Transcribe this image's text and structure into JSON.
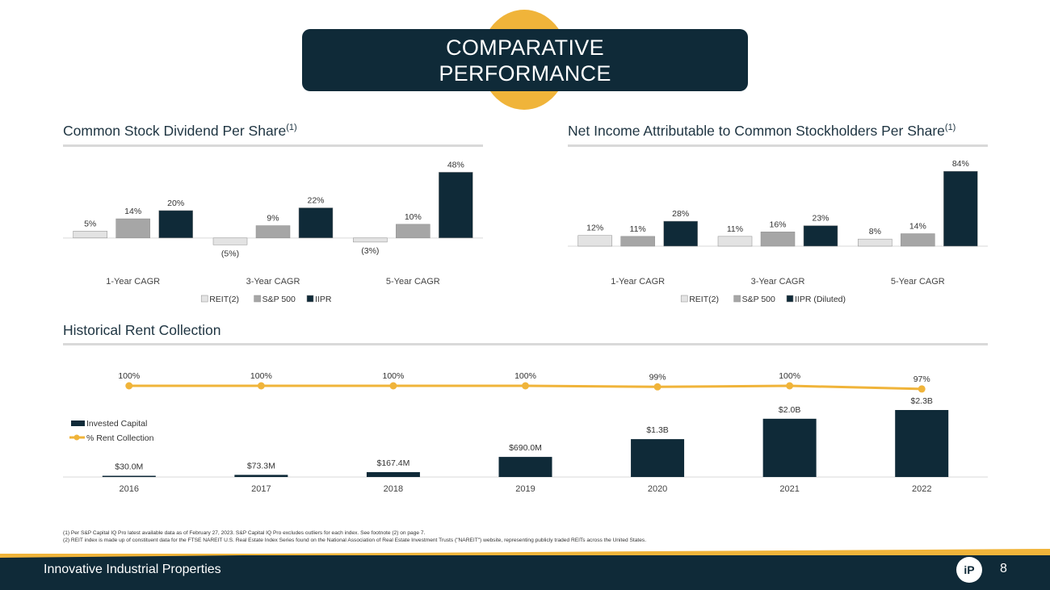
{
  "page_title": [
    "COMPARATIVE",
    "PERFORMANCE"
  ],
  "sections": {
    "dividend": {
      "title": "Common Stock Dividend Per Share",
      "sup": "(1)"
    },
    "net_income": {
      "title": "Net Income Attributable to Common Stockholders Per Share",
      "sup": "(1)"
    },
    "rent": {
      "title": "Historical Rent Collection"
    }
  },
  "chart_data": [
    {
      "type": "bar",
      "title": "Common Stock Dividend Per Share(1)",
      "categories": [
        "1-Year CAGR",
        "3-Year CAGR",
        "5-Year CAGR"
      ],
      "series": [
        {
          "name": "REIT(2)",
          "values": [
            5,
            -5,
            -3
          ],
          "labels": [
            "5%",
            "(5%)",
            "(3%)"
          ],
          "color": "#e3e3e3"
        },
        {
          "name": "S&P 500",
          "values": [
            14,
            9,
            10
          ],
          "labels": [
            "14%",
            "9%",
            "10%"
          ],
          "color": "#a6a6a6"
        },
        {
          "name": "IIPR",
          "values": [
            20,
            22,
            48
          ],
          "labels": [
            "20%",
            "22%",
            "48%"
          ],
          "color": "#0f2a38"
        }
      ],
      "ylim": [
        -6,
        50
      ],
      "legend": "bottom"
    },
    {
      "type": "bar",
      "title": "Net Income Attributable to Common Stockholders Per Share(1)",
      "categories": [
        "1-Year CAGR",
        "3-Year CAGR",
        "5-Year CAGR"
      ],
      "series": [
        {
          "name": "REIT(2)",
          "values": [
            12,
            11,
            8
          ],
          "labels": [
            "12%",
            "11%",
            "8%"
          ],
          "color": "#e3e3e3"
        },
        {
          "name": "S&P 500",
          "values": [
            11,
            16,
            14
          ],
          "labels": [
            "11%",
            "16%",
            "14%"
          ],
          "color": "#a6a6a6"
        },
        {
          "name": "IIPR (Diluted)",
          "values": [
            28,
            23,
            84
          ],
          "labels": [
            "28%",
            "23%",
            "84%"
          ],
          "color": "#0f2a38"
        }
      ],
      "ylim": [
        0,
        86
      ],
      "legend": "bottom"
    },
    {
      "type": "bar+line",
      "title": "Historical Rent Collection",
      "categories": [
        "2016",
        "2017",
        "2018",
        "2019",
        "2020",
        "2021",
        "2022"
      ],
      "series": [
        {
          "name": "Invested Capital",
          "kind": "bar",
          "values": [
            30.0,
            73.3,
            167.4,
            690.0,
            1300,
            2000,
            2300
          ],
          "labels": [
            "$30.0M",
            "$73.3M",
            "$167.4M",
            "$690.0M",
            "$1.3B",
            "$2.0B",
            "$2.3B"
          ],
          "unit": "$M",
          "color": "#0f2a38"
        },
        {
          "name": "% Rent Collection",
          "kind": "line",
          "values": [
            100,
            100,
            100,
            100,
            99,
            100,
            97
          ],
          "labels": [
            "100%",
            "100%",
            "100%",
            "100%",
            "99%",
            "100%",
            "97%"
          ],
          "color": "#f0b43a"
        }
      ],
      "legend": "left"
    }
  ],
  "footnotes": [
    "(1)   Per S&P Capital IQ Pro latest available data as of February 27, 2023. S&P Capital IQ Pro excludes outliers for each index. See footnote (2) on page 7.",
    "(2)   REIT index is made up of constituent data for the FTSE NAREIT U.S. Real Estate Index Series found on the National Association of Real Estate Investment Trusts (\"NAREIT\") website, representing publicly traded REITs across the United States."
  ],
  "footer": {
    "company": "Innovative Industrial Properties",
    "page_number": "8",
    "logo_text": "iP"
  },
  "colors": {
    "navy": "#0f2a38",
    "gold": "#f0b43a",
    "light_gray": "#e3e3e3",
    "mid_gray": "#a6a6a6"
  }
}
